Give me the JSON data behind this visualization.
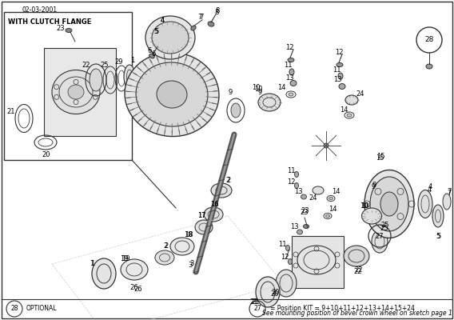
{
  "bg_color": "#f5f5f5",
  "border_color": "#000000",
  "line_color": "#333333",
  "text_color": "#000000",
  "figure_width": 5.68,
  "figure_height": 4.0,
  "dpi": 100,
  "title_date": "02-03-2001",
  "inset_label": "WITH CLUTCH FLANGE",
  "bottom_kit_text": "= Position KIT = 9+10+11+12+13+14+15+24",
  "bottom_note": "See mounting position of bevel crown wheel on sketch page 1",
  "optional_text": "OPTIONAL"
}
